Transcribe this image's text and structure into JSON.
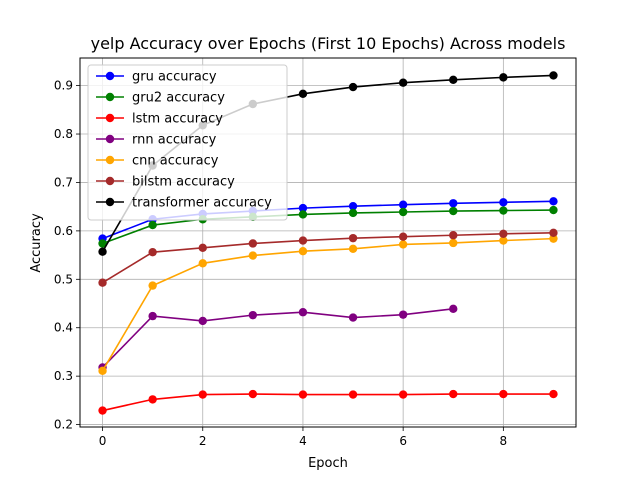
{
  "chart_data": {
    "type": "line",
    "title": "yelp Accuracy over Epochs (First 10 Epochs) Across models",
    "xlabel": "Epoch",
    "ylabel": "Accuracy",
    "xlim": [
      -0.45,
      9.45
    ],
    "ylim": [
      0.195,
      0.957
    ],
    "xticks": [
      0,
      2,
      4,
      6,
      8
    ],
    "yticks": [
      0.2,
      0.3,
      0.4,
      0.5,
      0.6,
      0.7,
      0.8,
      0.9
    ],
    "xtick_labels": [
      "0",
      "2",
      "4",
      "6",
      "8"
    ],
    "ytick_labels": [
      "0.2",
      "0.3",
      "0.4",
      "0.5",
      "0.6",
      "0.7",
      "0.8",
      "0.9"
    ],
    "grid": true,
    "legend_position": "upper-left",
    "series": [
      {
        "name": "gru accuracy",
        "color": "#0000ff",
        "x": [
          0,
          1,
          2,
          3,
          4,
          5,
          6,
          7,
          8,
          9
        ],
        "y": [
          0.584,
          0.624,
          0.635,
          0.641,
          0.647,
          0.651,
          0.654,
          0.657,
          0.659,
          0.661
        ]
      },
      {
        "name": "gru2 accuracy",
        "color": "#008000",
        "x": [
          0,
          1,
          2,
          3,
          4,
          5,
          6,
          7,
          8,
          9
        ],
        "y": [
          0.574,
          0.612,
          0.624,
          0.629,
          0.634,
          0.637,
          0.639,
          0.641,
          0.642,
          0.643
        ]
      },
      {
        "name": "lstm accuracy",
        "color": "#ff0000",
        "x": [
          0,
          1,
          2,
          3,
          4,
          5,
          6,
          7,
          8,
          9
        ],
        "y": [
          0.229,
          0.252,
          0.262,
          0.263,
          0.262,
          0.262,
          0.262,
          0.263,
          0.263,
          0.263
        ]
      },
      {
        "name": "rnn accuracy",
        "color": "#800080",
        "x": [
          0,
          1,
          2,
          3,
          4,
          5,
          6,
          7
        ],
        "y": [
          0.318,
          0.424,
          0.414,
          0.426,
          0.432,
          0.421,
          0.427,
          0.439
        ]
      },
      {
        "name": "cnn accuracy",
        "color": "#ffa500",
        "x": [
          0,
          1,
          2,
          3,
          4,
          5,
          6,
          7,
          8,
          9
        ],
        "y": [
          0.311,
          0.487,
          0.533,
          0.549,
          0.558,
          0.563,
          0.572,
          0.575,
          0.58,
          0.584
        ]
      },
      {
        "name": "bilstm accuracy",
        "color": "#a52a2a",
        "x": [
          0,
          1,
          2,
          3,
          4,
          5,
          6,
          7,
          8,
          9
        ],
        "y": [
          0.493,
          0.556,
          0.565,
          0.574,
          0.58,
          0.585,
          0.588,
          0.591,
          0.594,
          0.596
        ]
      },
      {
        "name": "transformer accuracy",
        "color": "#000000",
        "x": [
          0,
          1,
          2,
          3,
          4,
          5,
          6,
          7,
          8,
          9
        ],
        "y": [
          0.557,
          0.735,
          0.818,
          0.862,
          0.883,
          0.897,
          0.906,
          0.912,
          0.917,
          0.921
        ]
      }
    ]
  }
}
